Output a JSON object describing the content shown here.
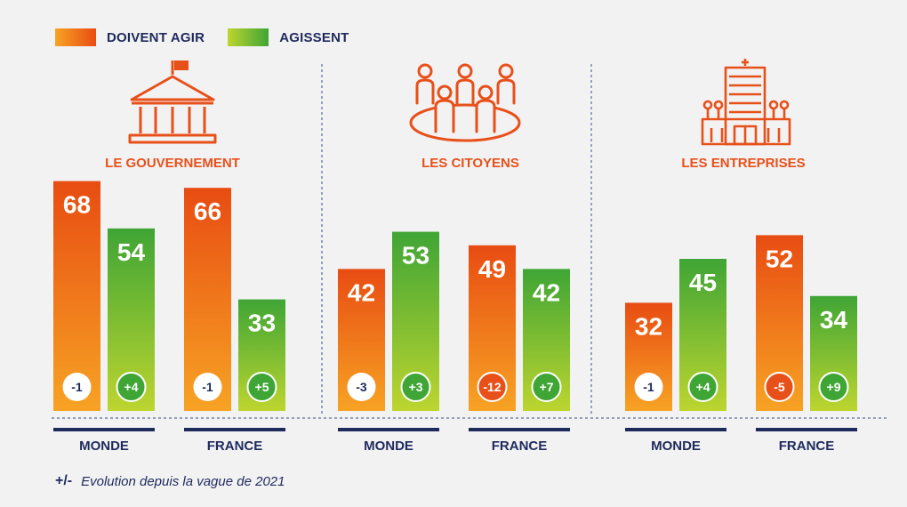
{
  "legend": {
    "doivent_agir": "DOIVENT AGIR",
    "agissent": "AGISSENT"
  },
  "footnote": {
    "symbol": "+/-",
    "text": "Evolution depuis la vague de 2021"
  },
  "colors": {
    "doivent_agir_top": "#e84c12",
    "doivent_agir_bottom": "#f7a324",
    "agissent_top": "#3fa535",
    "agissent_bottom": "#bdd52f",
    "accent_orange": "#e8501a",
    "navy": "#1f2a5c",
    "badge_negative_strong": "#e8501a",
    "badge_positive_ring": "#3fa535"
  },
  "chart_data": {
    "type": "bar",
    "title": "",
    "ylim": [
      0,
      100
    ],
    "grid": false,
    "legend_position": "top-left",
    "series_names": [
      "DOIVENT AGIR",
      "AGISSENT"
    ],
    "groups": [
      {
        "name": "LE GOUVERNEMENT",
        "icon": "government-building-icon",
        "categories": [
          {
            "name": "MONDE",
            "doivent_agir": {
              "value": 68,
              "evolution": "-1"
            },
            "agissent": {
              "value": 54,
              "evolution": "+4"
            }
          },
          {
            "name": "FRANCE",
            "doivent_agir": {
              "value": 66,
              "evolution": "-1"
            },
            "agissent": {
              "value": 33,
              "evolution": "+5"
            }
          }
        ]
      },
      {
        "name": "LES CITOYENS",
        "icon": "citizens-group-icon",
        "categories": [
          {
            "name": "MONDE",
            "doivent_agir": {
              "value": 42,
              "evolution": "-3"
            },
            "agissent": {
              "value": 53,
              "evolution": "+3"
            }
          },
          {
            "name": "FRANCE",
            "doivent_agir": {
              "value": 49,
              "evolution": "-12"
            },
            "agissent": {
              "value": 42,
              "evolution": "+7"
            }
          }
        ]
      },
      {
        "name": "LES ENTREPRISES",
        "icon": "company-building-icon",
        "categories": [
          {
            "name": "MONDE",
            "doivent_agir": {
              "value": 32,
              "evolution": "-1"
            },
            "agissent": {
              "value": 45,
              "evolution": "+4"
            }
          },
          {
            "name": "FRANCE",
            "doivent_agir": {
              "value": 52,
              "evolution": "-5"
            },
            "agissent": {
              "value": 34,
              "evolution": "+9"
            }
          }
        ]
      }
    ]
  }
}
